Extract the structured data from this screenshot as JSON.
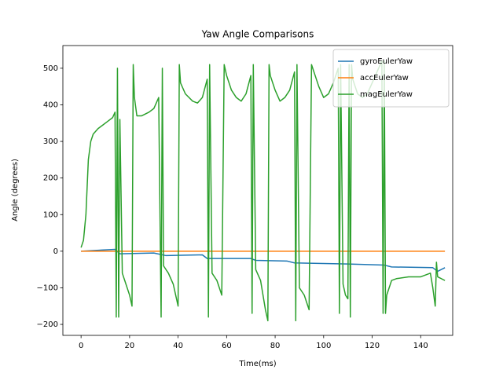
{
  "chart_data": {
    "type": "line",
    "title": "Yaw Angle Comparisons",
    "x_label": "Time(ms)",
    "y_label": "Angle (degrees)",
    "xlim": [
      -7.5,
      153.2
    ],
    "ylim": [
      -230,
      562
    ],
    "xticks": [
      0,
      20,
      40,
      60,
      80,
      100,
      120,
      140
    ],
    "yticks": [
      {
        "value": -200,
        "label": "−200"
      },
      {
        "value": -100,
        "label": "−100"
      },
      0,
      100,
      200,
      300,
      400,
      500
    ],
    "grid": false,
    "legend_position": "upper-right",
    "series": [
      {
        "name": "gyroEulerYaw",
        "color": "#1f77b4",
        "x": [
          0,
          14,
          16,
          30,
          35,
          50,
          52,
          70,
          72,
          85,
          88,
          110,
          125,
          128,
          145,
          147,
          150
        ],
        "values": [
          0,
          5,
          -7,
          -5,
          -12,
          -10,
          -20,
          -20,
          -25,
          -27,
          -32,
          -35,
          -38,
          -43,
          -45,
          -55,
          -45
        ]
      },
      {
        "name": "accEulerYaw",
        "color": "#ff7f0e",
        "x": [
          0,
          150
        ],
        "values": [
          0,
          0
        ]
      },
      {
        "name": "magEulerYaw",
        "color": "#2ca02c",
        "x": [
          0,
          1,
          2,
          3,
          4,
          5,
          7,
          9,
          11,
          13,
          14,
          14.5,
          15,
          15.5,
          16,
          17,
          18,
          19,
          20,
          21,
          21.5,
          22,
          23,
          25,
          28,
          30,
          32,
          33,
          33.5,
          34,
          36,
          38,
          40,
          40.5,
          41,
          43,
          46,
          48,
          50,
          52,
          52.5,
          53,
          54,
          56,
          58,
          59,
          60,
          62,
          64,
          66,
          68,
          70,
          70.5,
          71,
          72,
          74,
          76,
          77,
          77.5,
          78,
          80,
          82,
          84,
          86,
          88,
          88.5,
          89,
          90,
          92,
          94,
          95,
          96,
          98,
          100,
          102,
          104,
          106,
          106.5,
          107,
          108,
          109,
          110,
          110.5,
          111,
          111.5,
          112,
          114,
          116,
          118,
          120,
          122,
          124,
          124.5,
          125,
          125.5,
          126,
          128,
          130,
          135,
          140,
          144,
          145,
          146,
          146.5,
          147,
          150
        ],
        "values": [
          10,
          30,
          100,
          250,
          300,
          320,
          335,
          345,
          355,
          365,
          380,
          -180,
          500,
          -180,
          360,
          -60,
          -80,
          -100,
          -120,
          -150,
          510,
          420,
          370,
          370,
          380,
          390,
          420,
          -180,
          500,
          -40,
          -60,
          -90,
          -150,
          510,
          460,
          430,
          410,
          405,
          420,
          470,
          -180,
          510,
          -60,
          -80,
          -120,
          510,
          480,
          440,
          420,
          410,
          430,
          480,
          -170,
          510,
          -50,
          -80,
          -160,
          -190,
          510,
          480,
          440,
          410,
          420,
          440,
          490,
          -190,
          510,
          -100,
          -120,
          -160,
          510,
          490,
          450,
          420,
          430,
          460,
          500,
          -170,
          510,
          -90,
          -120,
          -130,
          510,
          -180,
          510,
          470,
          430,
          420,
          430,
          460,
          490,
          520,
          -170,
          520,
          -170,
          -120,
          -80,
          -75,
          -70,
          -70,
          -60,
          -100,
          -150,
          -30,
          -70,
          -80
        ]
      }
    ]
  }
}
